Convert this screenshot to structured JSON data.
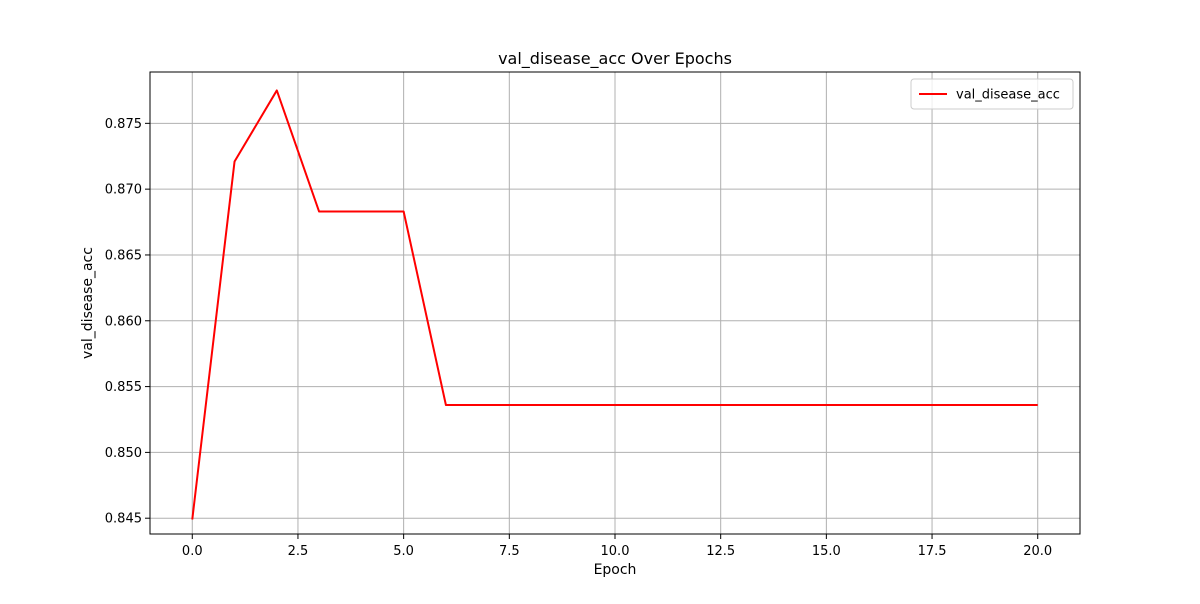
{
  "chart_data": {
    "type": "line",
    "title": "val_disease_acc Over Epochs",
    "xlabel": "Epoch",
    "ylabel": "val_disease_acc",
    "xlim": [
      -1,
      21
    ],
    "ylim": [
      0.8438,
      0.8789
    ],
    "x_ticks": [
      0,
      2.5,
      5,
      7.5,
      10,
      12.5,
      15,
      17.5,
      20
    ],
    "x_tick_labels": [
      "0.0",
      "2.5",
      "5.0",
      "7.5",
      "10.0",
      "12.5",
      "15.0",
      "17.5",
      "20.0"
    ],
    "y_ticks": [
      0.845,
      0.85,
      0.855,
      0.86,
      0.865,
      0.87,
      0.875
    ],
    "y_tick_labels": [
      "0.845",
      "0.850",
      "0.855",
      "0.860",
      "0.865",
      "0.870",
      "0.875"
    ],
    "grid": true,
    "legend_position": "top-right",
    "series": [
      {
        "name": "val_disease_acc",
        "color": "#ff0000",
        "x": [
          0,
          1,
          2,
          3,
          4,
          5,
          6,
          7,
          8,
          9,
          10,
          11,
          12,
          13,
          14,
          15,
          16,
          17,
          18,
          19,
          20
        ],
        "y": [
          0.8449,
          0.8721,
          0.8775,
          0.8683,
          0.8683,
          0.8683,
          0.8536,
          0.8536,
          0.8536,
          0.8536,
          0.8536,
          0.8536,
          0.8536,
          0.8536,
          0.8536,
          0.8536,
          0.8536,
          0.8536,
          0.8536,
          0.8536,
          0.8536
        ]
      }
    ]
  }
}
